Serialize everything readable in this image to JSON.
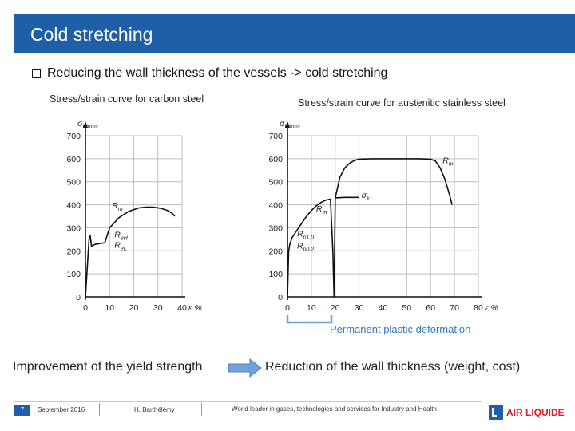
{
  "slide": {
    "title": "Cold stretching",
    "bullet": "Reducing the wall thickness of the vessels -> cold stretching",
    "improvement": "Improvement of the yield strength",
    "reduction": "Reduction of the wall thickness (weight, cost)",
    "permanent_deformation": "Permanent plastic deformation"
  },
  "footer": {
    "page": "7",
    "date": "September 2016",
    "author": "H. Barthélémy",
    "tagline": "World leader in gases, technologies and services for Industry and Health",
    "logo_text": "AIR LIQUIDE"
  },
  "colors": {
    "title_bar": "#1f5fa8",
    "accent_label": "#2f78c8",
    "arrow": "#6fa3d8",
    "logo_red": "#d8202a"
  },
  "chart_data": [
    {
      "type": "line",
      "title": "Stress/strain curve for carbon steel",
      "ylabel": "σ N/mm²",
      "xlabel": "ε %",
      "xlim": [
        0,
        40
      ],
      "ylim": [
        0,
        700
      ],
      "xticks": [
        0,
        10,
        20,
        30,
        40
      ],
      "yticks": [
        0,
        100,
        200,
        300,
        400,
        500,
        600,
        700
      ],
      "grid": true,
      "annotations": [
        {
          "text": "R",
          "sub": "m",
          "x": 11,
          "y": 385
        },
        {
          "text": "R",
          "sub": "eH",
          "x": 12,
          "y": 258
        },
        {
          "text": "R",
          "sub": "eL",
          "x": 12,
          "y": 213
        }
      ],
      "series": [
        {
          "x": [
            0,
            1.5,
            2,
            2.5,
            4,
            6,
            8,
            10,
            14,
            18,
            22,
            25,
            28,
            31,
            34,
            36,
            37
          ],
          "y": [
            0,
            250,
            265,
            220,
            228,
            232,
            235,
            300,
            345,
            372,
            386,
            390,
            390,
            385,
            375,
            362,
            350
          ]
        }
      ]
    },
    {
      "type": "line",
      "title": "Stress/strain curve for austenitic stainless steel",
      "ylabel": "σ N/mm²",
      "xlabel": "ε %",
      "xlim": [
        0,
        80
      ],
      "ylim": [
        0,
        700
      ],
      "xticks": [
        0,
        10,
        20,
        30,
        40,
        50,
        60,
        70,
        80
      ],
      "yticks": [
        0,
        100,
        200,
        300,
        400,
        500,
        600,
        700
      ],
      "grid": true,
      "annotations": [
        {
          "text": "R",
          "sub": "m",
          "x": 65,
          "y": 580
        },
        {
          "text": "σ",
          "sub": "k",
          "x": 31,
          "y": 430
        },
        {
          "text": "R",
          "sub": "m",
          "x": 12,
          "y": 370
        },
        {
          "text": "R",
          "sub": "p1,0",
          "x": 4,
          "y": 262
        },
        {
          "text": "R",
          "sub": "p0,2",
          "x": 4,
          "y": 210
        }
      ],
      "series": [
        {
          "x": [
            0,
            0.5,
            1,
            2,
            4,
            6,
            8,
            10,
            12,
            14,
            16,
            18
          ],
          "y": [
            0,
            200,
            230,
            258,
            290,
            320,
            350,
            375,
            395,
            410,
            420,
            425
          ]
        },
        {
          "x": [
            18,
            19,
            19.5,
            20
          ],
          "y": [
            425,
            200,
            0,
            430
          ]
        },
        {
          "x": [
            20,
            22,
            24,
            26,
            28,
            30
          ],
          "y": [
            430,
            520,
            560,
            580,
            592,
            598
          ],
          "continues": true
        },
        {
          "x": [
            30,
            35,
            40,
            45,
            50,
            55,
            60,
            62,
            64,
            66,
            68,
            69
          ],
          "y": [
            598,
            600,
            600,
            600,
            600,
            600,
            598,
            590,
            560,
            510,
            440,
            400
          ]
        },
        {
          "x": [
            20,
            24,
            30
          ],
          "y": [
            430,
            432,
            432
          ],
          "style": "sigma-k"
        }
      ]
    }
  ]
}
